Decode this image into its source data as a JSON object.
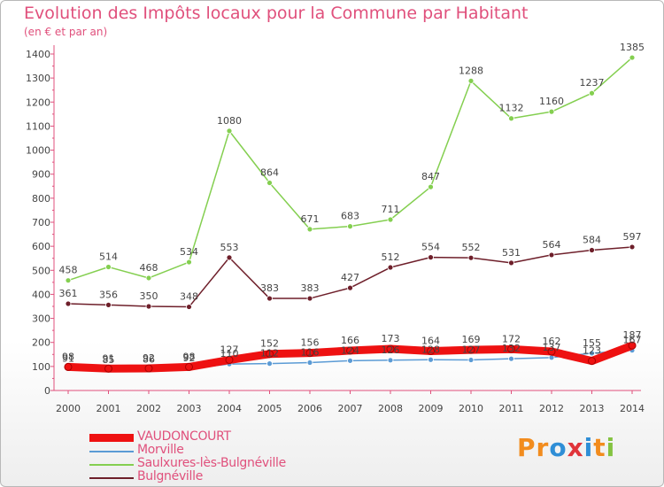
{
  "header": {
    "title": "Evolution des Impôts locaux pour la Commune par Habitant",
    "subtitle": "(en € et par an)"
  },
  "brand": {
    "letters": [
      "P",
      "r",
      "o",
      "x",
      "i",
      "t",
      "i"
    ],
    "colors": [
      "#f28c1e",
      "#f28c1e",
      "#2f8ed6",
      "#e0343a",
      "#2f8ed6",
      "#f28c1e",
      "#84c341"
    ]
  },
  "chart_data": {
    "type": "line",
    "title": "Evolution des Impôts locaux pour la Commune par Habitant",
    "xlabel": "",
    "ylabel": "(en € et par an)",
    "ylim": [
      0,
      1400
    ],
    "yticks": [
      0,
      100,
      200,
      300,
      400,
      500,
      600,
      700,
      800,
      900,
      1000,
      1100,
      1200,
      1300,
      1400
    ],
    "categories": [
      "2000",
      "2001",
      "2002",
      "2003",
      "2004",
      "2005",
      "2006",
      "2007",
      "2008",
      "2009",
      "2010",
      "2011",
      "2012",
      "2013",
      "2014"
    ],
    "grid": false,
    "series": [
      {
        "name": "VAUDONCOURT",
        "color": "#ee1111",
        "values": [
          98,
          91,
          92,
          98,
          127,
          152,
          156,
          166,
          173,
          164,
          169,
          172,
          162,
          123,
          187
        ],
        "labels": [
          "98",
          "91",
          "92",
          "98",
          "127",
          "152",
          "156",
          "166",
          "173",
          "164",
          "169",
          "172",
          "162",
          "123",
          "187"
        ]
      },
      {
        "name": "Morville",
        "color": "#5b9bd5",
        "values": [
          91,
          85,
          86,
          92,
          110,
          112,
          116,
          124,
          126,
          128,
          127,
          132,
          137,
          155,
          167
        ],
        "labels": [
          "91",
          "85",
          "86",
          "92",
          "110",
          "112",
          "116",
          "124",
          "126",
          "128",
          "127",
          "132",
          "137",
          "155",
          "167"
        ]
      },
      {
        "name": "Saulxures-lès-Bulgnéville",
        "color": "#84cf50",
        "values": [
          458,
          514,
          468,
          534,
          1080,
          864,
          671,
          683,
          711,
          847,
          1288,
          1132,
          1160,
          1237,
          1385
        ],
        "labels": [
          "458",
          "514",
          "468",
          "534",
          "1080",
          "864",
          "671",
          "683",
          "711",
          "847",
          "1288",
          "1132",
          "1160",
          "1237",
          "1385"
        ]
      },
      {
        "name": "Bulgnéville",
        "color": "#6e1f2a",
        "values": [
          361,
          356,
          350,
          348,
          553,
          383,
          383,
          427,
          512,
          554,
          552,
          531,
          564,
          584,
          597
        ],
        "labels": [
          "361",
          "356",
          "350",
          "348",
          "553",
          "383",
          "383",
          "427",
          "512",
          "554",
          "552",
          "531",
          "564",
          "584",
          "597"
        ]
      }
    ]
  }
}
